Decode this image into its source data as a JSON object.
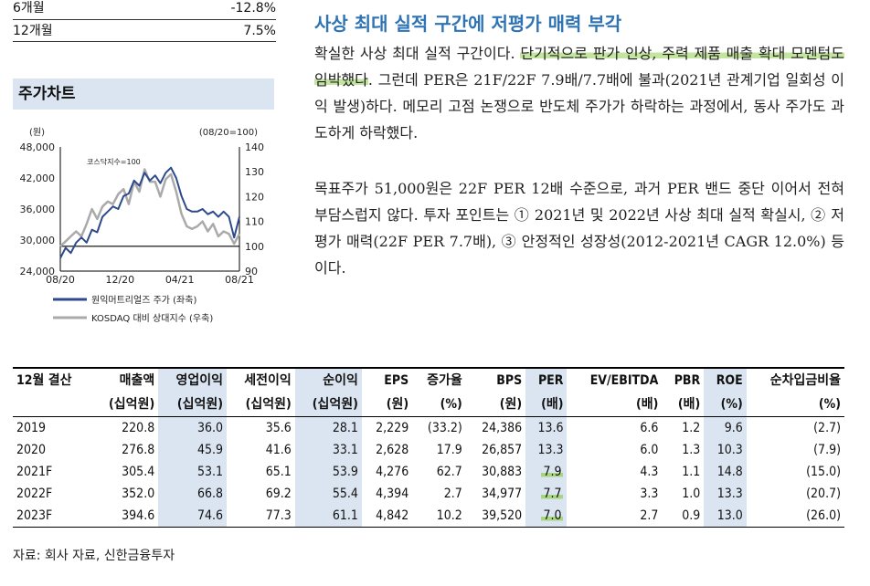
{
  "returns": [
    {
      "period": "6개월",
      "value": "-12.8%"
    },
    {
      "period": "12개월",
      "value": "7.5%"
    }
  ],
  "chart_section_title": "주가차트",
  "chart_data": {
    "type": "line",
    "left_unit": "(원)",
    "right_unit": "(08/20=100)",
    "left_ticks": [
      "48,000",
      "42,000",
      "36,000",
      "30,000",
      "24,000"
    ],
    "right_ticks": [
      "140",
      "130",
      "120",
      "110",
      "100",
      "90"
    ],
    "x_ticks": [
      "08/20",
      "12/20",
      "04/21",
      "08/21"
    ],
    "ylim_left": [
      24000,
      48000
    ],
    "ylim_right": [
      90,
      140
    ],
    "baseline_label": "코스닥지수=100",
    "baseline": 100,
    "series": [
      {
        "name": "원익머트리얼즈 주가 (좌축)",
        "axis": "left",
        "color": "#2e4a8c",
        "values": [
          26500,
          28500,
          27500,
          29500,
          30500,
          29500,
          32000,
          31500,
          34500,
          35500,
          36500,
          36000,
          38500,
          39000,
          41500,
          40500,
          43000,
          41500,
          42500,
          41000,
          43000,
          44000,
          42000,
          38500,
          36000,
          35500,
          35500,
          36000,
          35000,
          35500,
          34500,
          35500,
          34500,
          30500,
          34500
        ]
      },
      {
        "name": "KOSDAQ 대비 상대지수 (우축)",
        "axis": "right",
        "color": "#aaaaaa",
        "values": [
          100,
          102,
          104,
          106,
          104,
          109,
          115,
          111,
          116,
          118,
          117,
          121,
          123,
          117,
          126,
          122,
          131,
          126,
          126,
          120,
          127,
          129,
          122,
          113,
          108,
          107,
          108,
          110,
          106,
          109,
          104,
          106,
          105,
          101,
          105
        ]
      }
    ]
  },
  "headline": "사상 최대 실적 구간에 저평가 매력 부각",
  "para1": {
    "pre": "확실한 사상 최대 실적 구간이다. ",
    "highlight": "단기적으로 판가 인상, 주력 제품 매출 확대 모멘텀도 임박했다",
    "post": ". 그런데 PER은 21F/22F 7.9배/7.7배에 불과(2021년 관계기업 일회성 이익 발생)하다. 메모리 고점 논쟁으로 반도체 주가가 하락하는 과정에서, 동사 주가도 과도하게 하락했다."
  },
  "para2": "목표주가 51,000원은 22F PER 12배 수준으로, 과거 PER 밴드 중단 이어서 전혀 부담스럽지 않다. 투자 포인트는 ① 2021년 및 2022년 사상 최대 실적 확실시, ② 저평가 매력(22F PER 7.7배), ③ 안정적인 성장성(2012-2021년 CAGR 12.0%) 등이다.",
  "table": {
    "header_top": [
      "12월 결산",
      "매출액",
      "영업이익",
      "세전이익",
      "순이익",
      "EPS",
      "증가율",
      "BPS",
      "PER",
      "EV/EBITDA",
      "PBR",
      "ROE",
      "순차입금비율"
    ],
    "header_bottom": [
      "",
      "(십억원)",
      "(십억원)",
      "(십억원)",
      "(십억원)",
      "(원)",
      "(%)",
      "(원)",
      "(배)",
      "(배)",
      "(배)",
      "(%)",
      "(%)"
    ],
    "rows": [
      [
        "2019",
        "220.8",
        "36.0",
        "35.6",
        "28.1",
        "2,229",
        "(33.2)",
        "24,386",
        "13.6",
        "6.6",
        "1.2",
        "9.6",
        "(2.7)"
      ],
      [
        "2020",
        "276.8",
        "45.9",
        "41.6",
        "33.1",
        "2,628",
        "17.9",
        "26,857",
        "13.3",
        "6.0",
        "1.3",
        "10.3",
        "(7.9)"
      ],
      [
        "2021F",
        "305.4",
        "53.1",
        "65.1",
        "53.9",
        "4,276",
        "62.7",
        "30,883",
        "7.9",
        "4.3",
        "1.1",
        "14.8",
        "(15.0)"
      ],
      [
        "2022F",
        "352.0",
        "66.8",
        "69.2",
        "55.4",
        "4,394",
        "2.7",
        "34,977",
        "7.7",
        "3.3",
        "1.0",
        "13.3",
        "(20.7)"
      ],
      [
        "2023F",
        "394.6",
        "74.6",
        "77.3",
        "61.1",
        "4,842",
        "10.2",
        "39,520",
        "7.0",
        "2.7",
        "0.9",
        "13.0",
        "(26.0)"
      ]
    ]
  },
  "source": "자료: 회사 자료, 신한금융투자"
}
